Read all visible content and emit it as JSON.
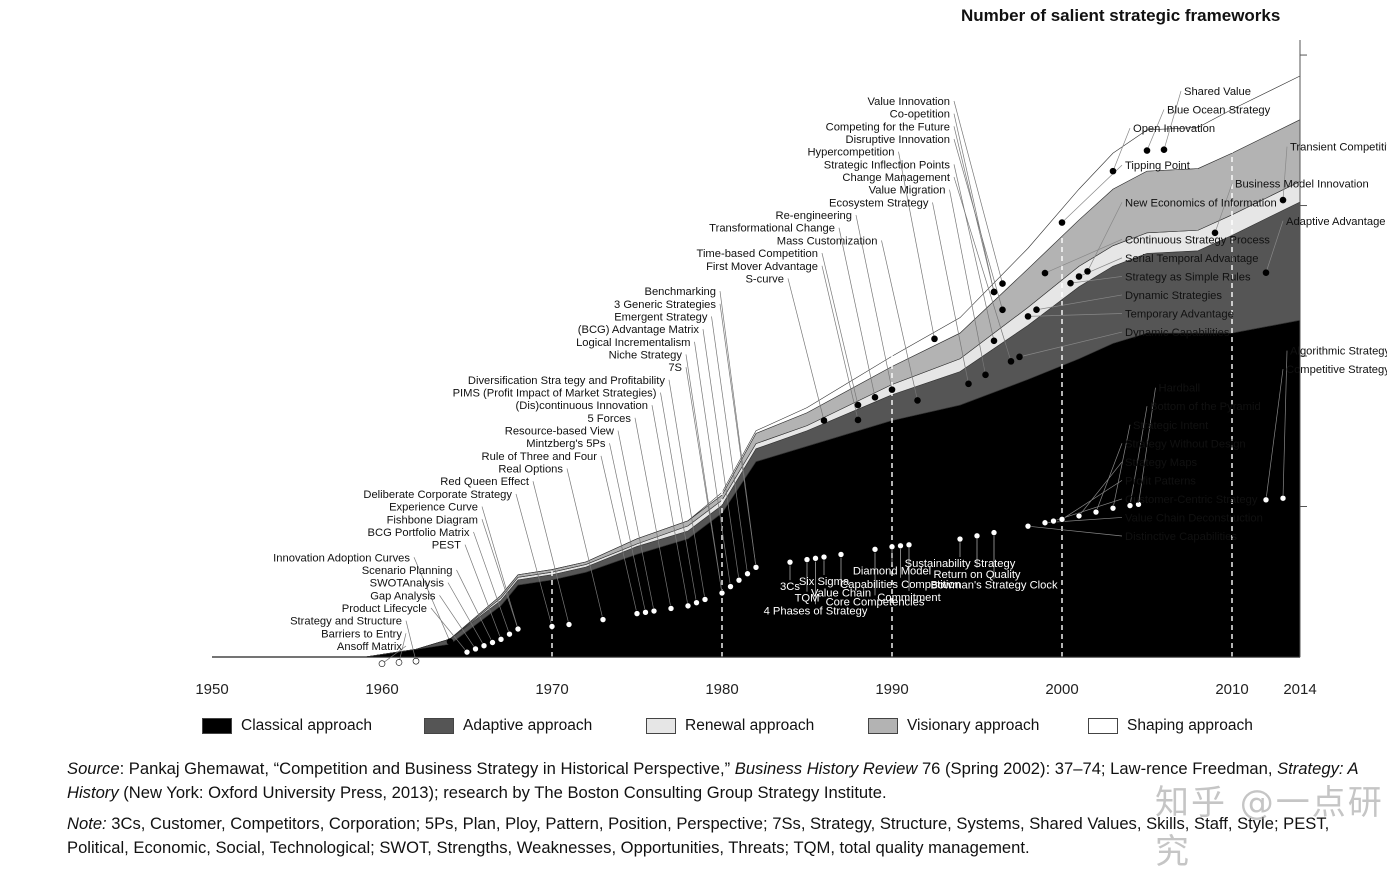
{
  "title": "Number of salient strategic frameworks",
  "legend": [
    {
      "label": "Classical approach",
      "color": "#000000"
    },
    {
      "label": "Adaptive approach",
      "color": "#555555"
    },
    {
      "label": "Renewal approach",
      "color": "#e6e6e6"
    },
    {
      "label": "Visionary approach",
      "color": "#b3b3b3"
    },
    {
      "label": "Shaping approach",
      "color": "#ffffff"
    }
  ],
  "notes": {
    "source_label": "Source",
    "source_text_1": ": Pankaj Ghemawat, “Competition and Business Strategy in Historical Perspective,” ",
    "source_journal": "Business History Review",
    "source_text_2": " 76 (Spring 2002): 37–74; Law-rence Freedman, ",
    "source_book": "Strategy: A History",
    "source_text_3": " (New York: Oxford University Press, 2013); research by The Boston Consulting Group Strategy Institute.",
    "note_label": "Note:",
    "note_text": " 3Cs, Customer, Competitors, Corporation; 5Ps, Plan, Ploy, Pattern, Position, Perspective; 7Ss, Strategy, Structure, Systems, Shared Values, Skills, Staff, Style; PEST, Political, Economic, Social, Technological; SWOT, Strengths, Weaknesses, Opportunities, Threats; TQM, total quality management."
  },
  "watermark": "知乎 @一点研究",
  "chart_data": {
    "type": "area",
    "stacked": true,
    "title": "Number of salient strategic frameworks",
    "xlim": [
      1950,
      2014
    ],
    "x_ticks": [
      1950,
      1960,
      1970,
      1980,
      1990,
      2000,
      2010,
      2014
    ],
    "dashed_lines_at": [
      1970,
      1980,
      1990,
      2000,
      2010
    ],
    "y_axis_labels": false,
    "x": [
      1959,
      1962,
      1964,
      1967,
      1968,
      1970,
      1972,
      1975,
      1978,
      1980,
      1982,
      1985,
      1990,
      1994,
      1998,
      2001,
      2003,
      2005,
      2008,
      2010,
      2014
    ],
    "series": [
      {
        "name": "Classical approach",
        "color": "#000000",
        "values": [
          0,
          3,
          5,
          20,
          28,
          30,
          33,
          40,
          46,
          56,
          76,
          82,
          92,
          98,
          108,
          116,
          122,
          126,
          126,
          126,
          131
        ]
      },
      {
        "name": "Adaptive approach",
        "color": "#555555",
        "values": [
          0,
          0,
          2,
          2,
          2,
          2,
          2,
          3,
          3,
          3,
          5,
          6,
          10,
          13,
          21,
          28,
          30,
          31,
          32,
          38,
          46
        ]
      },
      {
        "name": "Renewal approach",
        "color": "#e6e6e6",
        "values": [
          0,
          0,
          0,
          1,
          1,
          1,
          1,
          1,
          2,
          2,
          2,
          2,
          4,
          5,
          7,
          8,
          8,
          8,
          8,
          8,
          8
        ]
      },
      {
        "name": "Visionary approach",
        "color": "#b3b3b3",
        "values": [
          0,
          0,
          0,
          1,
          1,
          1,
          1,
          2,
          2,
          2,
          4,
          5,
          7,
          10,
          15,
          18,
          22,
          24,
          24,
          24,
          24
        ]
      },
      {
        "name": "Shaping approach",
        "color": "#ffffff",
        "values": [
          0,
          0,
          0,
          0,
          0,
          0,
          0,
          0,
          0,
          1,
          1,
          2,
          4,
          6,
          8,
          12,
          14,
          16,
          16,
          17,
          17
        ]
      }
    ],
    "ylim": [
      0,
      240
    ],
    "annotations": [
      {
        "label": "Ansoff Matrix",
        "year": 1960,
        "series": 0
      },
      {
        "label": "Barriers to Entry",
        "year": 1961,
        "series": 0
      },
      {
        "label": "Strategy and Structure",
        "year": 1962,
        "series": 0
      },
      {
        "label": "Innovation Adoption Curves",
        "year": 1964,
        "series": 1
      },
      {
        "label": "Product Lifecycle",
        "year": 1965,
        "series": 0
      },
      {
        "label": "Gap Analysis",
        "year": 1965.5,
        "series": 0
      },
      {
        "label": "SWOTAnalysis",
        "year": 1966,
        "series": 0
      },
      {
        "label": "Scenario Planning",
        "year": 1966.5,
        "series": 0
      },
      {
        "label": "PEST",
        "year": 1967,
        "series": 0
      },
      {
        "label": "BCG Portfolio Matrix",
        "year": 1967.5,
        "series": 0
      },
      {
        "label": "Fishbone Diagram",
        "year": 1968,
        "series": 0
      },
      {
        "label": "Experience Curve",
        "year": 1968,
        "series": 0
      },
      {
        "label": "Deliberate Corporate Strategy",
        "year": 1970,
        "series": 0
      },
      {
        "label": "Red Queen Effect",
        "year": 1971,
        "series": 0
      },
      {
        "label": "Real Options",
        "year": 1973,
        "series": 0
      },
      {
        "label": "Rule of Three and Four",
        "year": 1975,
        "series": 0
      },
      {
        "label": "Mintzberg's 5Ps",
        "year": 1975.5,
        "series": 0
      },
      {
        "label": "Resource-based View",
        "year": 1976,
        "series": 0
      },
      {
        "label": "5 Forces",
        "year": 1977,
        "series": 0
      },
      {
        "label": "(Dis)continuous Innovation",
        "year": 1978,
        "series": 0
      },
      {
        "label": "PIMS (Profit Impact of Market Strategies)",
        "year": 1978.5,
        "series": 0
      },
      {
        "label": "Diversification Stra tegy and Profitability",
        "year": 1979,
        "series": 0
      },
      {
        "label": "7S",
        "year": 1980,
        "series": 0
      },
      {
        "label": "Niche Strategy",
        "year": 1980,
        "series": 0
      },
      {
        "label": "Logical Incrementalism",
        "year": 1980.5,
        "series": 0
      },
      {
        "label": "(BCG) Advantage Matrix",
        "year": 1981,
        "series": 0
      },
      {
        "label": "Emergent Strategy",
        "year": 1981.5,
        "series": 0
      },
      {
        "label": "3 Generic Strategies",
        "year": 1982,
        "series": 0
      },
      {
        "label": "Benchmarking",
        "year": 1982,
        "series": 0
      },
      {
        "label": "3Cs",
        "year": 1984,
        "series": 0
      },
      {
        "label": "TQM",
        "year": 1985,
        "series": 0
      },
      {
        "label": "4 Phases of Strategy",
        "year": 1985.5,
        "series": 0
      },
      {
        "label": "Six Sigma",
        "year": 1986,
        "series": 0
      },
      {
        "label": "Value Chain",
        "year": 1987,
        "series": 0
      },
      {
        "label": "S-curve",
        "year": 1986,
        "series": 2
      },
      {
        "label": "First Mover Advantage",
        "year": 1988,
        "series": 1
      },
      {
        "label": "Time-based Competition",
        "year": 1988,
        "series": 2
      },
      {
        "label": "Transformational Change",
        "year": 1989,
        "series": 2
      },
      {
        "label": "Re-engineering",
        "year": 1990,
        "series": 2
      },
      {
        "label": "Mass Customization",
        "year": 1991.5,
        "series": 1
      },
      {
        "label": "Hypercompetition",
        "year": 1992.5,
        "series": 4
      },
      {
        "label": "Core Competencies",
        "year": 1989,
        "series": 0
      },
      {
        "label": "Diamond Model",
        "year": 1990,
        "series": 0
      },
      {
        "label": "Capabilities Competition",
        "year": 1990.5,
        "series": 0
      },
      {
        "label": "Commitment",
        "year": 1991,
        "series": 0
      },
      {
        "label": "Sustainability Strategy",
        "year": 1994,
        "series": 0
      },
      {
        "label": "Return on Quality",
        "year": 1995,
        "series": 0
      },
      {
        "label": "Bowman's Strategy Clock",
        "year": 1996,
        "series": 0
      },
      {
        "label": "Ecosystem Strategy",
        "year": 1994.5,
        "series": 1
      },
      {
        "label": "Value Migration",
        "year": 1995.5,
        "series": 1
      },
      {
        "label": "Strategic Inflection Points",
        "year": 1996,
        "series": 2
      },
      {
        "label": "Disruptive Innovation",
        "year": 1996.5,
        "series": 3
      },
      {
        "label": "Change Management",
        "year": 1997,
        "series": 1
      },
      {
        "label": "Dynamic Capabilities",
        "year": 1997.5,
        "series": 1
      },
      {
        "label": "Competing for the Future",
        "year": 1996,
        "series": 4
      },
      {
        "label": "Value Innovation",
        "year": 1996.5,
        "series": 4
      },
      {
        "label": "Co-opetition",
        "year": 1996,
        "series": 4
      },
      {
        "label": "Temporary Advantage",
        "year": 1998,
        "series": 2
      },
      {
        "label": "Dynamic Strategies",
        "year": 1998.5,
        "series": 2
      },
      {
        "label": "Continuous Strategy Process",
        "year": 1999,
        "series": 3
      },
      {
        "label": "Tipping Point",
        "year": 2000,
        "series": 4
      },
      {
        "label": "Strategy as Simple Rules",
        "year": 2000.5,
        "series": 2
      },
      {
        "label": "Serial Temporal Advantage",
        "year": 2001,
        "series": 2
      },
      {
        "label": "New Economics of Information",
        "year": 2001.5,
        "series": 2
      },
      {
        "label": "Open Innovation",
        "year": 2003,
        "series": 4
      },
      {
        "label": "Blue Ocean Strategy",
        "year": 2005,
        "series": 4
      },
      {
        "label": "Shared Value",
        "year": 2006,
        "series": 4
      },
      {
        "label": "Business Model Innovation",
        "year": 2009,
        "series": 2
      },
      {
        "label": "Transient Competitive Advantage",
        "year": 2013,
        "series": 2
      },
      {
        "label": "Adaptive Advantage",
        "year": 2012,
        "series": 1
      },
      {
        "label": "Competitive Strategy: Options and Games",
        "year": 2012,
        "series": 0
      },
      {
        "label": "Algorithmic Strategy",
        "year": 2013,
        "series": 0
      },
      {
        "label": "Strategic Intent",
        "year": 2003,
        "series": 0
      },
      {
        "label": "Bottom of the Pyramid",
        "year": 2004,
        "series": 0
      },
      {
        "label": "Hardball",
        "year": 2004.5,
        "series": 0
      },
      {
        "label": "Strategy Without Design",
        "year": 2002,
        "series": 0
      },
      {
        "label": "Strategy Maps",
        "year": 2001,
        "series": 0
      },
      {
        "label": "Profit Patterns",
        "year": 2000,
        "series": 0
      },
      {
        "label": "Customer-Centric Strategy",
        "year": 1999.5,
        "series": 0
      },
      {
        "label": "Value Chain Deconstruction",
        "year": 1999,
        "series": 0
      },
      {
        "label": "Distinctive Capabilities",
        "year": 1998,
        "series": 0
      }
    ]
  }
}
